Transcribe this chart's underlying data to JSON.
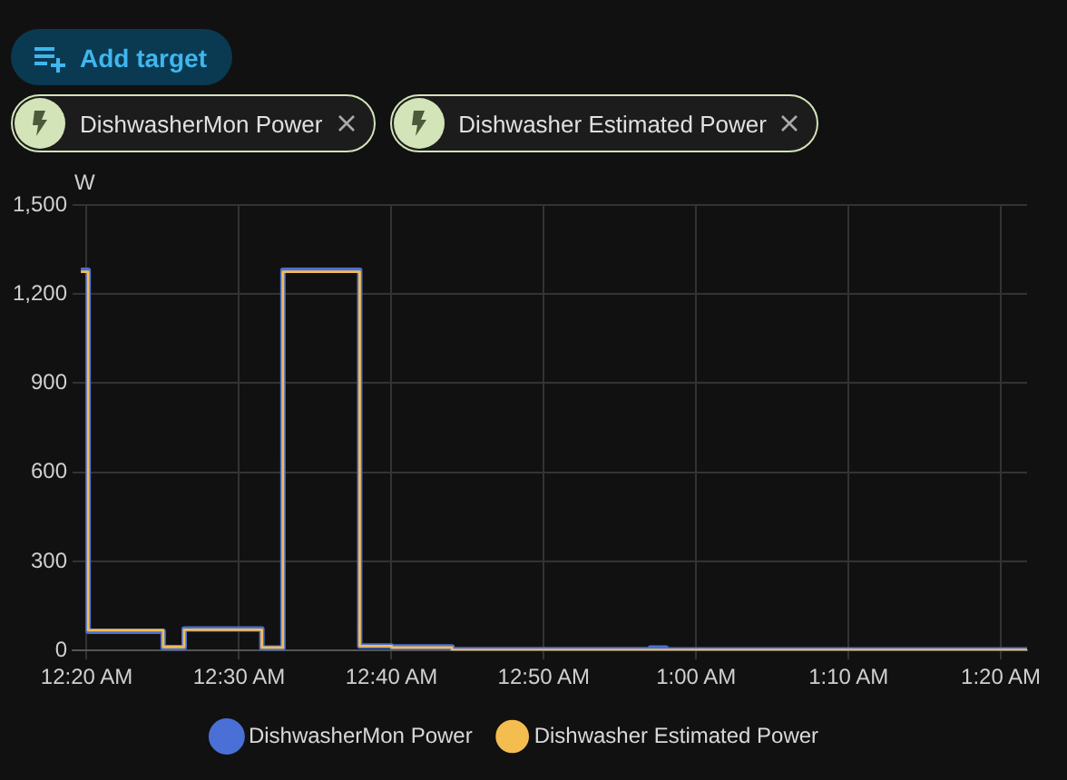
{
  "chart_data": {
    "type": "step",
    "ylabel": "W",
    "annotations": [
      "Add target"
    ],
    "series": [
      {
        "name": "DishwasherMon Power",
        "color": "#4a6fd6",
        "x": [
          0.327,
          0.335,
          0.417,
          0.44,
          0.525,
          0.548,
          0.632,
          0.667,
          0.733,
          0.95,
          0.967,
          1.362
        ],
        "values": [
          1280,
          65,
          10,
          72,
          8,
          1280,
          15,
          12,
          3,
          8,
          2,
          2
        ]
      },
      {
        "name": "Dishwasher Estimated Power",
        "color": "#f4bd4f",
        "x": [
          0.327,
          0.335,
          0.417,
          0.44,
          0.525,
          0.548,
          0.632,
          0.667,
          0.733,
          1.362
        ],
        "values": [
          1275,
          68,
          12,
          70,
          10,
          1275,
          15,
          10,
          2,
          2
        ]
      }
    ],
    "xlim": [
      0.318,
      1.362
    ],
    "xticks": [
      {
        "value": 0.3333,
        "label": "12:20 AM"
      },
      {
        "value": 0.5,
        "label": "12:30 AM"
      },
      {
        "value": 0.6667,
        "label": "12:40 AM"
      },
      {
        "value": 0.8333,
        "label": "12:50 AM"
      },
      {
        "value": 1,
        "label": "1:00 AM"
      },
      {
        "value": 1.1667,
        "label": "1:10 AM"
      },
      {
        "value": 1.3333,
        "label": "1:20 AM"
      }
    ],
    "ylim": [
      0,
      1500
    ],
    "yticks": [
      {
        "value": 0,
        "label": "0"
      },
      {
        "value": 300,
        "label": "300"
      },
      {
        "value": 600,
        "label": "600"
      },
      {
        "value": 900,
        "label": "900"
      },
      {
        "value": 1200,
        "label": "1,200"
      },
      {
        "value": 1500,
        "label": "1,500"
      }
    ],
    "grid": true,
    "legend": "bottom",
    "marker": "none",
    "line_style": "solid"
  }
}
